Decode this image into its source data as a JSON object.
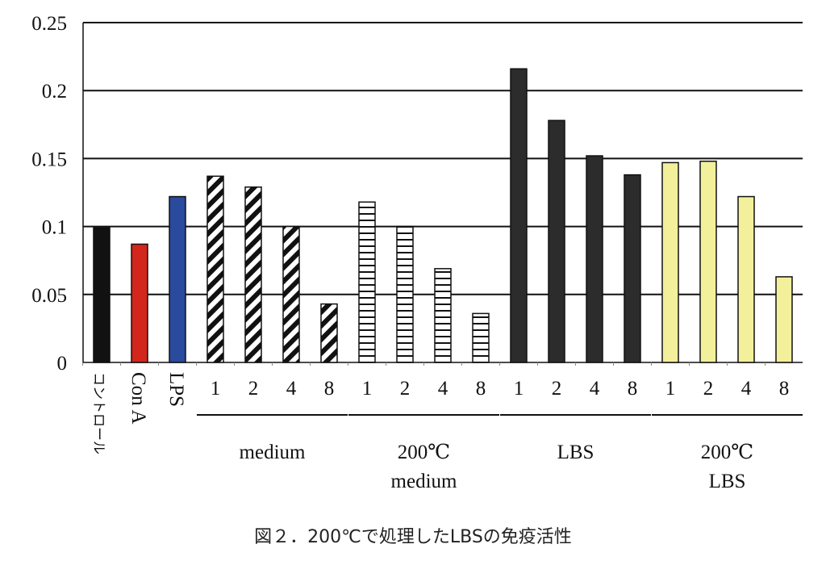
{
  "chart_data": {
    "type": "bar",
    "title": "",
    "caption": "図２．200℃で処理したLBSの免疫活性",
    "xlabel": "",
    "ylabel": "",
    "ylim": [
      0,
      0.25
    ],
    "yticks": [
      "0",
      "0.05",
      "0.1",
      "0.15",
      "0.2",
      "0.25"
    ],
    "grid": true,
    "categories": [
      "コントロール",
      "Con A",
      "LPS",
      "1",
      "2",
      "4",
      "8",
      "1",
      "2",
      "4",
      "8",
      "1",
      "2",
      "4",
      "8",
      "1",
      "2",
      "4",
      "8"
    ],
    "values": [
      0.099,
      0.087,
      0.122,
      0.137,
      0.129,
      0.1,
      0.043,
      0.118,
      0.1,
      0.069,
      0.036,
      0.216,
      0.178,
      0.152,
      0.138,
      0.147,
      0.148,
      0.122,
      0.063
    ],
    "styles": [
      "black",
      "red",
      "blue",
      "diag",
      "diag",
      "diag",
      "diag",
      "horiz",
      "horiz",
      "horiz",
      "horiz",
      "dark",
      "dark",
      "dark",
      "dark",
      "yellow",
      "yellow",
      "yellow",
      "yellow"
    ],
    "groups": [
      {
        "lines": [
          "medium"
        ],
        "start": 3,
        "end": 6
      },
      {
        "lines": [
          "200℃",
          "medium"
        ],
        "start": 7,
        "end": 10
      },
      {
        "lines": [
          "LBS"
        ],
        "start": 11,
        "end": 14
      },
      {
        "lines": [
          "200℃",
          "LBS"
        ],
        "start": 15,
        "end": 18
      }
    ],
    "colors": {
      "black": "#111111",
      "red": "#d3271d",
      "blue": "#2a4a9e",
      "dark": "#2c2c2c",
      "yellow": "#f3f09c"
    }
  }
}
